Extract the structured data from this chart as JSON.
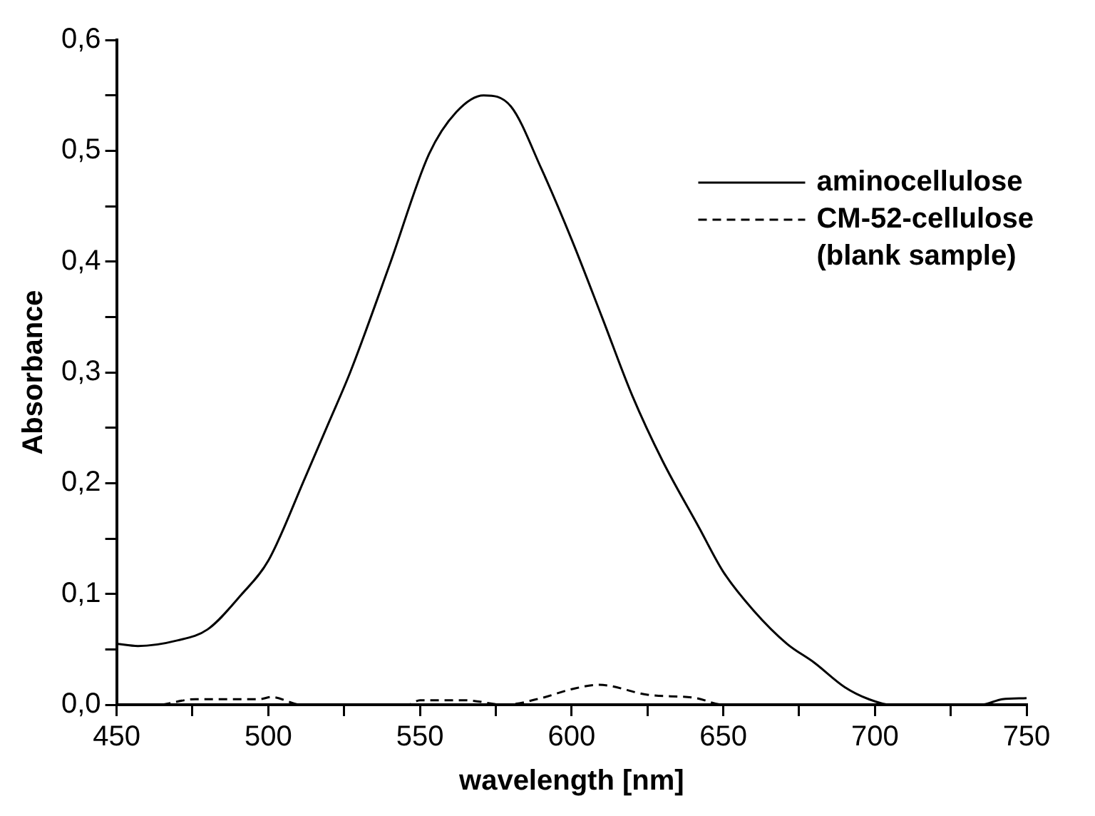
{
  "chart_data": {
    "type": "line",
    "xlabel": "wavelength [nm]",
    "ylabel": "Absorbance",
    "xlim": [
      450,
      750
    ],
    "ylim": [
      0,
      0.6
    ],
    "xticks": [
      450,
      {
        "value": 475,
        "label": null
      },
      500,
      {
        "value": 525,
        "label": null
      },
      550,
      {
        "value": 575,
        "label": null
      },
      600,
      {
        "value": 625,
        "label": null
      },
      650,
      {
        "value": 675,
        "label": null
      },
      700,
      {
        "value": 725,
        "label": null
      },
      750
    ],
    "yticks": [
      {
        "value": 0,
        "label": "0,0"
      },
      {
        "value": 0.05,
        "label": null
      },
      {
        "value": 0.1,
        "label": "0,1"
      },
      {
        "value": 0.15,
        "label": null
      },
      {
        "value": 0.2,
        "label": "0,2"
      },
      {
        "value": 0.25,
        "label": null
      },
      {
        "value": 0.3,
        "label": "0,3"
      },
      {
        "value": 0.35,
        "label": null
      },
      {
        "value": 0.4,
        "label": "0,4"
      },
      {
        "value": 0.45,
        "label": null
      },
      {
        "value": 0.5,
        "label": "0,5"
      },
      {
        "value": 0.55,
        "label": null
      },
      {
        "value": 0.6,
        "label": "0,6"
      }
    ],
    "grid": false,
    "legend": "top right",
    "marker": "none",
    "series": [
      {
        "name": "aminocellulose",
        "color": "#000000",
        "line_style": "solid",
        "x": [
          450,
          457,
          470,
          480,
          491,
          500,
          512,
          520,
          527,
          540,
          553,
          562,
          571,
          580,
          590,
          600,
          610,
          620,
          630,
          642,
          650,
          660,
          671,
          680,
          690,
          698,
          705,
          720,
          735,
          742,
          750
        ],
        "values": [
          0.055,
          0.053,
          0.058,
          0.068,
          0.099,
          0.13,
          0.204,
          0.255,
          0.3,
          0.397,
          0.497,
          0.535,
          0.55,
          0.54,
          0.484,
          0.42,
          0.35,
          0.279,
          0.22,
          0.16,
          0.12,
          0.085,
          0.055,
          0.038,
          0.016,
          0.005,
          0,
          0,
          0,
          0.005,
          0.006
        ]
      },
      {
        "name": "CM-52-cellulose (blank sample)",
        "color": "#000000",
        "line_style": "dashed",
        "x": [
          465,
          476,
          497,
          501,
          511,
          546,
          550,
          565,
          578,
          590,
          600,
          609,
          625,
          641,
          650,
          660
        ],
        "values": [
          0,
          0.005,
          0.005,
          0.007,
          0,
          0,
          0.004,
          0.004,
          0,
          0.006,
          0.014,
          0.018,
          0.009,
          0.006,
          0,
          0
        ]
      }
    ]
  }
}
